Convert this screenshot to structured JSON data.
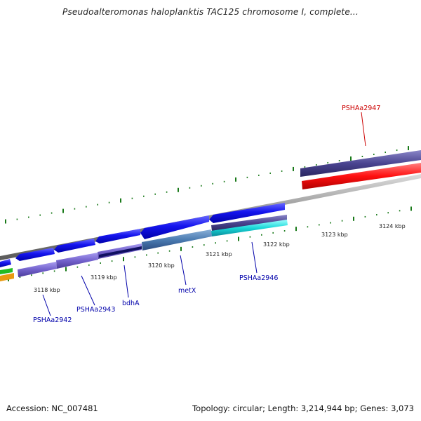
{
  "title": "Pseudoalteromonas haloplanktis TAC125 chromosome I, complete...",
  "footer": {
    "accession": "Accession: NC_007481",
    "summary": "Topology: circular; Length: 3,214,944 bp; Genes: 3,073"
  },
  "scale_labels": [
    {
      "text": "3118 kbp"
    },
    {
      "text": "3119 kbp"
    },
    {
      "text": "3120 kbp"
    },
    {
      "text": "3121 kbp"
    },
    {
      "text": "3122 kbp"
    },
    {
      "text": "3123 kbp"
    },
    {
      "text": "3124 kbp"
    }
  ],
  "gene_labels": [
    {
      "text": "PSHAa2947",
      "color": "#cc0000"
    },
    {
      "text": "PSHAa2942",
      "color": "#0000aa"
    },
    {
      "text": "PSHAa2943",
      "color": "#0000aa"
    },
    {
      "text": "bdhA",
      "color": "#0000aa"
    },
    {
      "text": "metX",
      "color": "#0000aa"
    },
    {
      "text": "PSHAa2946",
      "color": "#0000aa"
    }
  ],
  "colors": {
    "backbone": "#8a8a8a",
    "forward_gene": "#1010e0",
    "reverse_gene": "#7a6ad0",
    "highlight_red": "#ff1010",
    "tick_green": "#1a7a1a"
  }
}
